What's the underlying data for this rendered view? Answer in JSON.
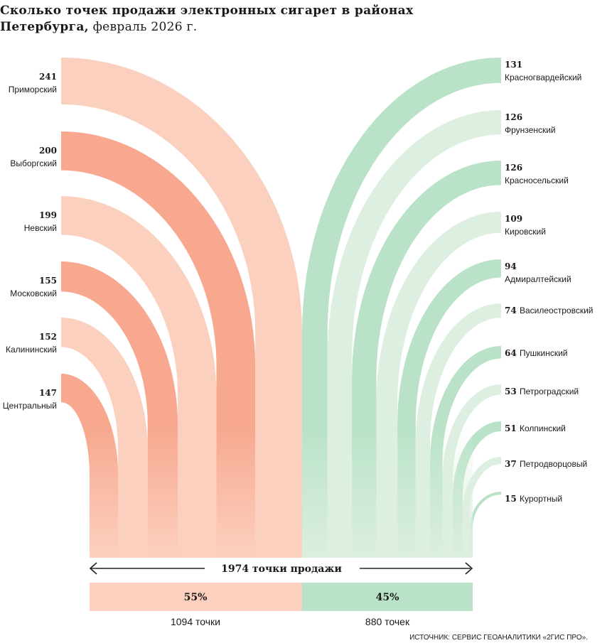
{
  "title": {
    "bold": "Сколько точек продажи электронных сигарет в районах Петербурга,",
    "light": " февраль 2026 г."
  },
  "chart_data": {
    "type": "stacked-arc",
    "title": "Сколько точек продажи электронных сигарет в районах Петербурга, февраль 2026 г.",
    "unit": "точки продажи",
    "left_series": [
      {
        "district": "Приморский",
        "value": 241
      },
      {
        "district": "Выборгский",
        "value": 200
      },
      {
        "district": "Невский",
        "value": 199
      },
      {
        "district": "Московский",
        "value": 155
      },
      {
        "district": "Калининский",
        "value": 152
      },
      {
        "district": "Центральный",
        "value": 147
      }
    ],
    "right_series": [
      {
        "district": "Красногвардейский",
        "value": 131
      },
      {
        "district": "Фрунзенский",
        "value": 126
      },
      {
        "district": "Красносельский",
        "value": 126
      },
      {
        "district": "Кировский",
        "value": 109
      },
      {
        "district": "Адмиралтейский",
        "value": 94
      },
      {
        "district": "Василеостровский",
        "value": 74
      },
      {
        "district": "Пушкинский",
        "value": 64
      },
      {
        "district": "Петроградский",
        "value": 53
      },
      {
        "district": "Колпинский",
        "value": 51
      },
      {
        "district": "Петродворцовый",
        "value": 37
      },
      {
        "district": "Курортный",
        "value": 15
      }
    ],
    "total_label": "1974 точки продажи",
    "left_summary": {
      "percent": "55%",
      "count": "1094 точки"
    },
    "right_summary": {
      "percent": "45%",
      "count": "880 точек"
    },
    "colors": {
      "left_light": "#fcd0bf",
      "left_dark": "#f7a88f",
      "right_light": "#dcefe0",
      "right_dark": "#b9e2c8",
      "arrow": "#222222"
    }
  },
  "source": "ИСТОЧНИК: СЕРВИС ГЕОАНАЛИТИКИ «2ГИС ПРО»."
}
